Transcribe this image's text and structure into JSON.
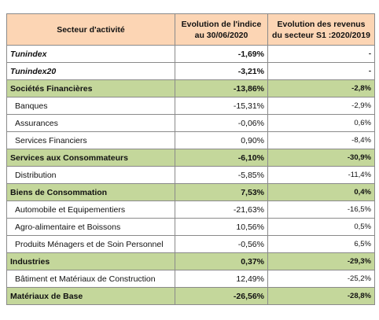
{
  "table": {
    "header": [
      "Secteur d'activité",
      "Evolution  de l'indice au 30/06/2020",
      "Evolution  des revenus du secteur S1 :2020/2019"
    ],
    "rows": [
      [
        "Tunindex",
        "-1,69%",
        "-"
      ],
      [
        "Tunindex20",
        "-3,21%",
        "-"
      ],
      [
        "Sociétés Financières",
        "-13,86%",
        "-2,8%"
      ],
      [
        "Banques",
        "-15,31%",
        "-2,9%"
      ],
      [
        "Assurances",
        "-0,06%",
        "0,6%"
      ],
      [
        "Services Financiers",
        "0,90%",
        "-8,4%"
      ],
      [
        "Services aux Consommateurs",
        "-6,10%",
        "-30,9%"
      ],
      [
        "Distribution",
        "-5,85%",
        "-11,4%"
      ],
      [
        "Biens de Consommation",
        "7,53%",
        "0,4%"
      ],
      [
        "Automobile et Equipementiers",
        "-21,63%",
        "-16,5%"
      ],
      [
        "Agro-alimentaire et Boissons",
        "10,56%",
        "0,5%"
      ],
      [
        "Produits Ménagers et de Soin Personnel",
        "-0,56%",
        "6,5%"
      ],
      [
        "Industries",
        "0,37%",
        "-29,3%"
      ],
      [
        "Bâtiment et Matériaux de Construction",
        "12,49%",
        "-25,2%"
      ],
      [
        "Matériaux de Base",
        "-26,56%",
        "-28,8%"
      ]
    ]
  }
}
